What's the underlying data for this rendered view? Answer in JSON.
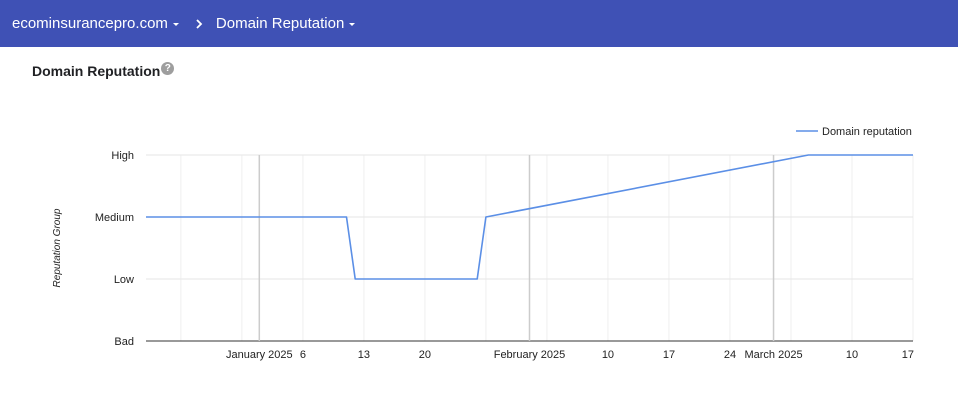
{
  "header": {
    "domain": "ecominsurancepro.com",
    "page": "Domain Reputation"
  },
  "panel": {
    "title": "Domain Reputation",
    "help_glyph": "?"
  },
  "colors": {
    "header_bg": "#3f51b5",
    "series": "#5b8fe6"
  },
  "icons": [
    "dropdown-caret-icon",
    "chevron-right-icon",
    "help-icon"
  ],
  "chart_data": {
    "type": "line",
    "y_categories": [
      "Bad",
      "Low",
      "Medium",
      "High"
    ],
    "ylabel": "Reputation Group",
    "legend": {
      "position": "top-right"
    },
    "x_range": [
      "2024-12-19",
      "2025-03-17"
    ],
    "x_ticks": [
      {
        "date": "2025-01-01",
        "label": "January 2025"
      },
      {
        "date": "2025-01-06",
        "label": "6"
      },
      {
        "date": "2025-01-13",
        "label": "13"
      },
      {
        "date": "2025-01-20",
        "label": "20"
      },
      {
        "date": "2025-02-01",
        "label": "February 2025"
      },
      {
        "date": "2025-02-10",
        "label": "10"
      },
      {
        "date": "2025-02-17",
        "label": "17"
      },
      {
        "date": "2025-02-24",
        "label": "24"
      },
      {
        "date": "2025-03-01",
        "label": "March 2025"
      },
      {
        "date": "2025-03-10",
        "label": "10"
      },
      {
        "date": "2025-03-17",
        "label": "17"
      }
    ],
    "series": [
      {
        "name": "Domain reputation",
        "points": [
          {
            "x": "2024-12-19",
            "y": "Medium"
          },
          {
            "x": "2025-01-11",
            "y": "Medium"
          },
          {
            "x": "2025-01-12",
            "y": "Low"
          },
          {
            "x": "2025-01-26",
            "y": "Low"
          },
          {
            "x": "2025-01-27",
            "y": "Medium"
          },
          {
            "x": "2025-03-05",
            "y": "High"
          },
          {
            "x": "2025-03-17",
            "y": "High"
          }
        ]
      }
    ],
    "grid": true
  }
}
